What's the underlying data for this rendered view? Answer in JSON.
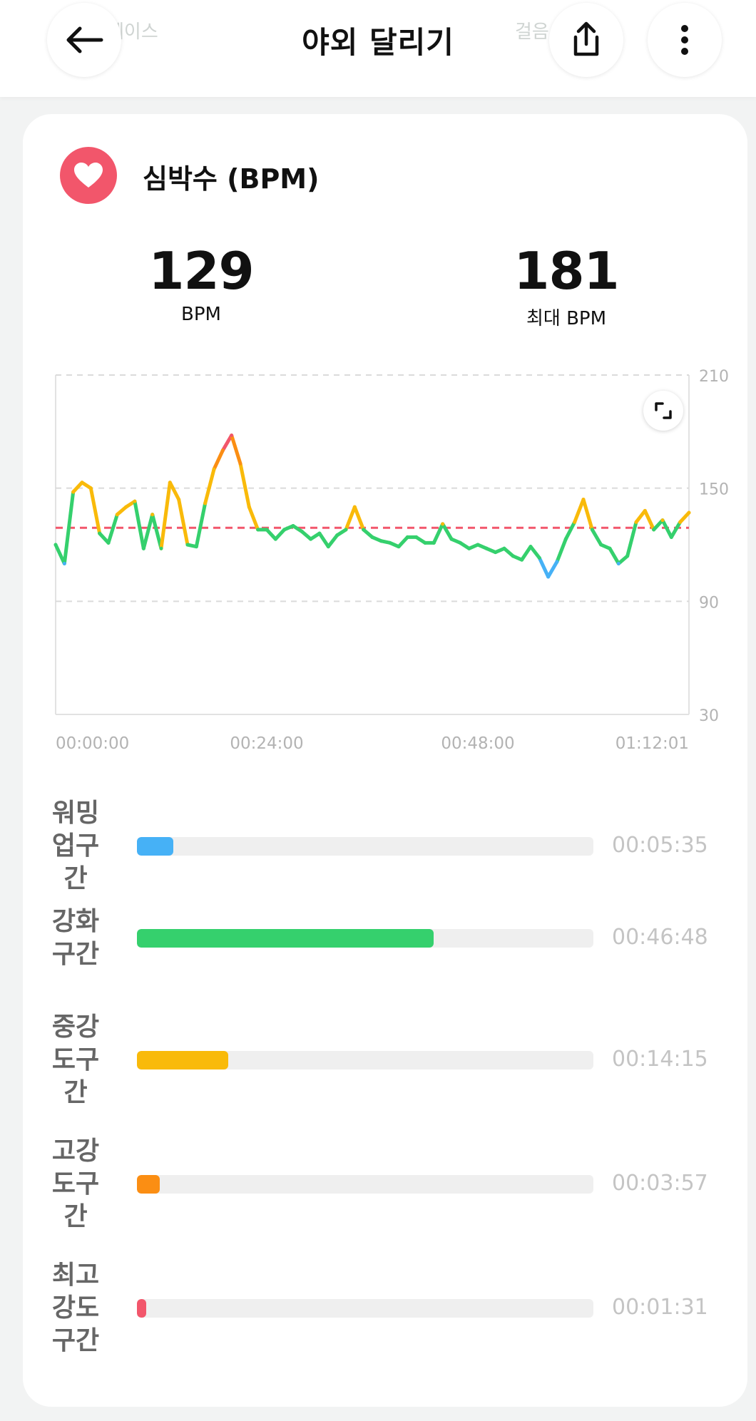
{
  "header": {
    "title": "야외 달리기",
    "ghost_left": "페이스",
    "ghost_right": "걸음"
  },
  "card": {
    "title": "심박수 (BPM)",
    "avg": {
      "value": "129",
      "label": "BPM"
    },
    "max": {
      "value": "181",
      "label": "최대 BPM"
    }
  },
  "chart_data": {
    "type": "line",
    "ylabel": "BPM",
    "ylim": [
      30,
      210
    ],
    "yticks": [
      "210",
      "150",
      "90",
      "30"
    ],
    "xticks": [
      "00:00:00",
      "00:24:00",
      "00:48:00",
      "01:12:01"
    ],
    "average_line": 129,
    "x_minutes": [
      0,
      1,
      2,
      3,
      4,
      5,
      6,
      7,
      8,
      9,
      10,
      11,
      12,
      13,
      14,
      15,
      16,
      17,
      18,
      19,
      20,
      21,
      22,
      23,
      24,
      25,
      26,
      27,
      28,
      29,
      30,
      31,
      32,
      33,
      34,
      35,
      36,
      37,
      38,
      39,
      40,
      41,
      42,
      43,
      44,
      45,
      46,
      47,
      48,
      49,
      50,
      51,
      52,
      53,
      54,
      55,
      56,
      57,
      58,
      59,
      60,
      61,
      62,
      63,
      64,
      65,
      66,
      67,
      68,
      69,
      70,
      71,
      72
    ],
    "values": [
      120,
      110,
      148,
      153,
      150,
      126,
      121,
      136,
      140,
      143,
      118,
      136,
      118,
      153,
      144,
      120,
      119,
      142,
      160,
      170,
      178,
      163,
      140,
      128,
      128,
      123,
      128,
      130,
      127,
      123,
      126,
      119,
      125,
      128,
      140,
      128,
      124,
      122,
      121,
      119,
      124,
      124,
      121,
      121,
      131,
      123,
      121,
      118,
      120,
      118,
      116,
      118,
      114,
      112,
      119,
      113,
      103,
      111,
      123,
      132,
      144,
      128,
      120,
      118,
      110,
      114,
      132,
      138,
      128,
      133,
      124,
      132,
      137
    ],
    "zone_colors": {
      "warmup": "#46b1f6",
      "fatburn": "#35d06d",
      "aerobic": "#f9ba0a",
      "anaerobic": "#fb8e13",
      "max": "#f2566b"
    }
  },
  "zones": [
    {
      "label": "워밍업구간",
      "time": "00:05:35",
      "fraction": 0.08,
      "color": "#46b1f6"
    },
    {
      "label": "강화구간",
      "time": "00:46:48",
      "fraction": 0.65,
      "color": "#35d06d"
    },
    {
      "label": "중강도구간",
      "time": "00:14:15",
      "fraction": 0.2,
      "color": "#f9ba0a"
    },
    {
      "label": "고강도구간",
      "time": "00:03:57",
      "fraction": 0.05,
      "color": "#fb8e13"
    },
    {
      "label": "최고강도구간",
      "time": "00:01:31",
      "fraction": 0.02,
      "color": "#f2566b"
    }
  ]
}
